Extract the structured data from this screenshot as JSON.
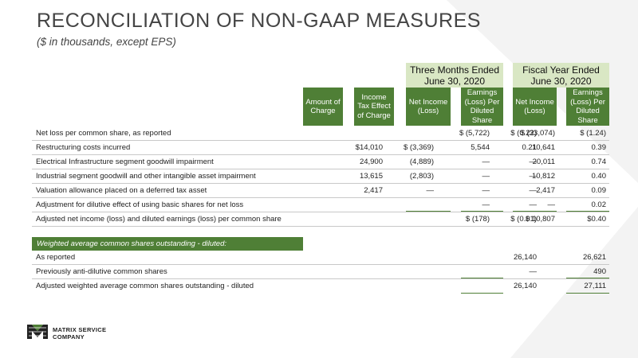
{
  "title": "RECONCILIATION OF NON-GAAP MEASURES",
  "subtitle": "($ in thousands, except EPS)",
  "groups": {
    "three_months": "Three Months Ended June 30, 2020",
    "fiscal_year": "Fiscal Year Ended June 30, 2020"
  },
  "headers": {
    "amount": "Amount of Charge",
    "tax": "Income Tax Effect of Charge",
    "ni_3m": "Net Income (Loss)",
    "eps_3m": "Earnings (Loss) Per Diluted Share",
    "ni_fy": "Net Income (Loss)",
    "eps_fy": "Earnings (Loss) Per Diluted Share"
  },
  "rows": [
    {
      "label": "Net loss per common share, as reported",
      "amount": "",
      "tax": "",
      "ni_3m": "$ (5,722)",
      "eps_3m": "$ (0.22)",
      "ni_fy": "$ (33,074)",
      "eps_fy": "$ (1.24)"
    },
    {
      "label": "Restructuring costs incurred",
      "amount": "$14,010",
      "tax": "$ (3,369)",
      "ni_3m": "5,544",
      "eps_3m": "0.21",
      "ni_fy": "10,641",
      "eps_fy": "0.39"
    },
    {
      "label": "Electrical Infrastructure segment goodwill impairment",
      "amount": "24,900",
      "tax": "(4,889)",
      "ni_3m": "—",
      "eps_3m": "—",
      "ni_fy": "20,011",
      "eps_fy": "0.74"
    },
    {
      "label": "Industrial segment goodwill and other intangible asset impairment",
      "amount": "13,615",
      "tax": "(2,803)",
      "ni_3m": "—",
      "eps_3m": "—",
      "ni_fy": "10,812",
      "eps_fy": "0.40"
    },
    {
      "label": "Valuation allowance placed on a deferred tax asset",
      "amount": "2,417",
      "tax": "—",
      "ni_3m": "—",
      "eps_3m": "—",
      "ni_fy": "2,417",
      "eps_fy": "0.09"
    },
    {
      "label": "Adjustment for dilutive effect of using basic shares for net loss",
      "amount": "",
      "tax": "",
      "ni_3m": "—",
      "eps_3m": "—",
      "ni_fy": "—",
      "eps_fy": "0.02"
    },
    {
      "label": "Adjusted net income (loss)  and diluted earnings (loss) per common share",
      "amount": "",
      "tax": "",
      "ni_3m": "$ (178)",
      "eps_3m": "$   (0.01)",
      "ni_fy": "$  10,807",
      "eps_fy": "$0.40"
    }
  ],
  "shares_header": "Weighted average common shares outstanding - diluted:",
  "share_rows": [
    {
      "label": "As reported",
      "three_months": "26,140",
      "fiscal_year": "26,621"
    },
    {
      "label": "Previously anti-dilutive common shares",
      "three_months": "—",
      "fiscal_year": "490"
    },
    {
      "label": "Adjusted weighted average common shares outstanding - diluted",
      "three_months": "26,140",
      "fiscal_year": "27,111"
    }
  ],
  "logo": {
    "line1": "MATRIX SERVICE",
    "line2": "COMPANY",
    "icon": "matrix-logo-icon"
  },
  "colors": {
    "accent": "#4f7f36",
    "group_bg": "#d9e7c4"
  }
}
